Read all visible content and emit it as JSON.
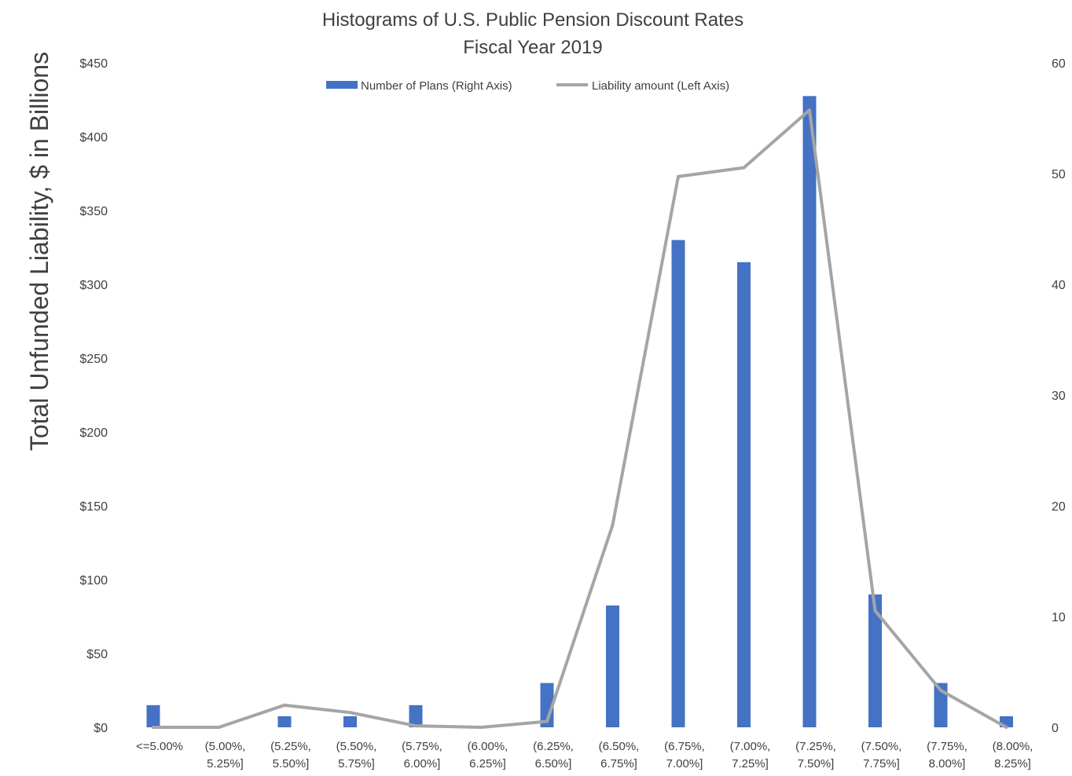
{
  "chart_data": {
    "type": "bar",
    "title": "Histograms of U.S. Public Pension Discount Rates",
    "subtitle": "Fiscal Year 2019",
    "ylabel": "Total Unfunded Liability, $ in Billions",
    "ylabel_right": "",
    "xlabel": "",
    "categories": [
      [
        "<=5.00%"
      ],
      [
        "(5.00%,",
        "5.25%]"
      ],
      [
        "(5.25%,",
        "5.50%]"
      ],
      [
        "(5.50%,",
        "5.75%]"
      ],
      [
        "(5.75%,",
        "6.00%]"
      ],
      [
        "(6.00%,",
        "6.25%]"
      ],
      [
        "(6.25%,",
        "6.50%]"
      ],
      [
        "(6.50%,",
        "6.75%]"
      ],
      [
        "(6.75%,",
        "7.00%]"
      ],
      [
        "(7.00%,",
        "7.25%]"
      ],
      [
        "(7.25%,",
        "7.50%]"
      ],
      [
        "(7.50%,",
        "7.75%]"
      ],
      [
        "(7.75%,",
        "8.00%]"
      ],
      [
        "(8.00%,",
        "8.25%]"
      ]
    ],
    "ylim_left": [
      0,
      450
    ],
    "ylim_right": [
      0,
      60
    ],
    "left_ticks": [
      "$0",
      "$50",
      "$100",
      "$150",
      "$200",
      "$250",
      "$300",
      "$350",
      "$400",
      "$450"
    ],
    "right_ticks": [
      "0",
      "10",
      "20",
      "30",
      "40",
      "50",
      "60"
    ],
    "legend_position": "top-center",
    "grid": false,
    "series": [
      {
        "name": "Number of Plans (Right Axis)",
        "kind": "bar",
        "axis": "right",
        "color": "#4472C4",
        "values": [
          2,
          0,
          1,
          1,
          2,
          0,
          4,
          11,
          44,
          42,
          57,
          12,
          4,
          1
        ]
      },
      {
        "name": "Liability amount (Left Axis)",
        "kind": "line",
        "axis": "left",
        "color": "#A5A5A5",
        "values": [
          0,
          0,
          15,
          10,
          1,
          0,
          4,
          137,
          373,
          379,
          418,
          79,
          25,
          0
        ]
      }
    ]
  }
}
